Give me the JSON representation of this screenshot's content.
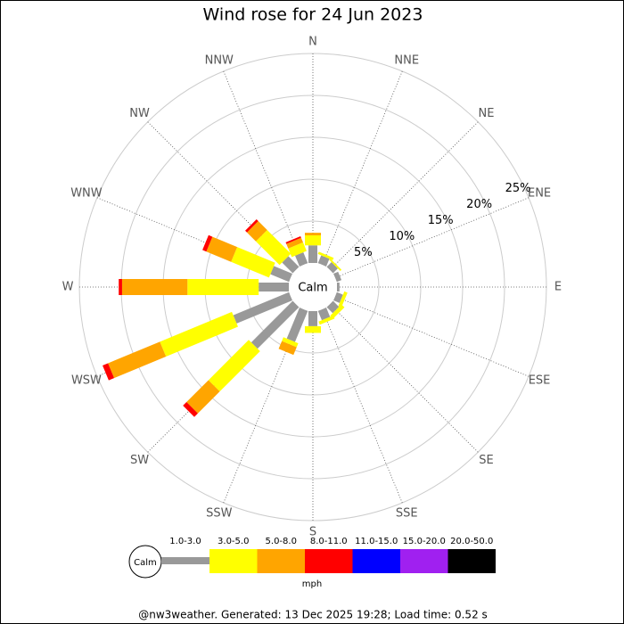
{
  "chart_data": {
    "type": "windrose",
    "title": "Wind rose for 24 Jun 2023",
    "categories": [
      "N",
      "NNE",
      "NE",
      "ENE",
      "E",
      "ESE",
      "SE",
      "SSE",
      "S",
      "SSW",
      "SW",
      "WSW",
      "W",
      "WNW",
      "NW",
      "NNW"
    ],
    "center_label": "Calm",
    "rlim": [
      0,
      25
    ],
    "rticks": [
      {
        "value": 5,
        "label": "5%"
      },
      {
        "value": 10,
        "label": "10%"
      },
      {
        "value": 15,
        "label": "15%"
      },
      {
        "value": 20,
        "label": "20%"
      },
      {
        "value": 25,
        "label": "25%"
      }
    ],
    "legend_unit": "mph",
    "series": [
      {
        "name": "1.0-3.0",
        "color": "#999999",
        "values": [
          2.1,
          1.0,
          0.8,
          0.6,
          0.3,
          0.8,
          1.0,
          1.2,
          1.8,
          4.0,
          7.0,
          7.2,
          3.6,
          2.4,
          1.8,
          1.4
        ]
      },
      {
        "name": "3.0-5.0",
        "color": "#ffff00",
        "values": [
          1.2,
          0.3,
          0.2,
          0,
          0,
          0.4,
          0.5,
          0.4,
          0.8,
          0.5,
          6.8,
          9.3,
          8.5,
          4.9,
          4.0,
          1.1
        ]
      },
      {
        "name": "5.0-8.0",
        "color": "#ffa500",
        "values": [
          0.3,
          0,
          0,
          0,
          0,
          0,
          0,
          0,
          0,
          1.0,
          3.7,
          6.7,
          7.8,
          3.2,
          1.5,
          0.6
        ]
      },
      {
        "name": "8.0-11.0",
        "color": "#ff0000",
        "values": [
          0,
          0,
          0,
          0,
          0,
          0,
          0,
          0,
          0,
          0,
          0.6,
          0.7,
          0.4,
          0.5,
          0.3,
          0.2
        ]
      },
      {
        "name": "11.0-15.0",
        "color": "#0000ff",
        "values": [
          0,
          0,
          0,
          0,
          0,
          0,
          0,
          0,
          0,
          0,
          0,
          0,
          0,
          0,
          0,
          0
        ]
      },
      {
        "name": "15.0-20.0",
        "color": "#a020f0",
        "values": [
          0,
          0,
          0,
          0,
          0,
          0,
          0,
          0,
          0,
          0,
          0,
          0,
          0,
          0,
          0,
          0
        ]
      },
      {
        "name": "20.0-50.0",
        "color": "#000000",
        "values": [
          0,
          0,
          0,
          0,
          0,
          0,
          0,
          0,
          0,
          0,
          0,
          0,
          0,
          0,
          0,
          0
        ]
      }
    ],
    "footer": "@nw3weather. Generated: 13 Dec 2025 19:28; Load time: 0.52 s"
  }
}
